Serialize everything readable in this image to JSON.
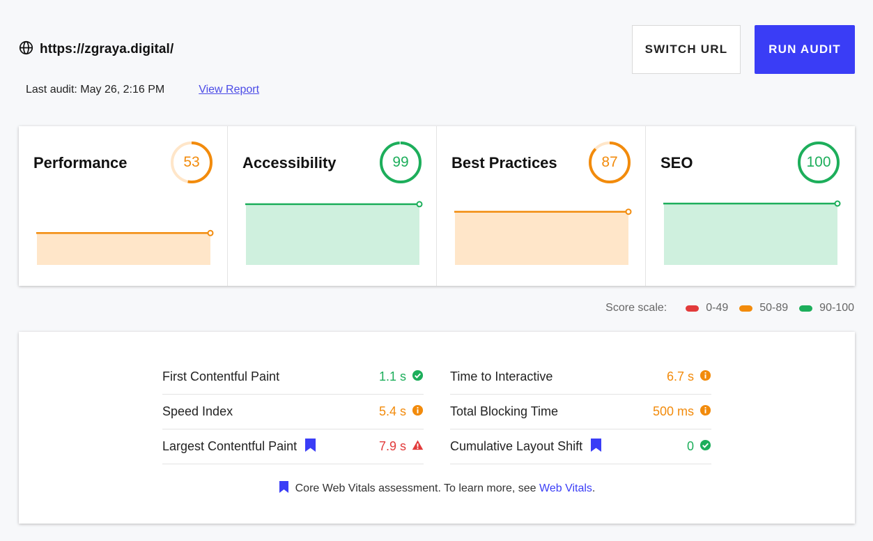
{
  "header": {
    "url": "https://zgraya.digital/",
    "last_audit": "Last audit: May 26, 2:16 PM",
    "view_report": "View Report",
    "switch_url": "SWITCH URL",
    "run_audit": "RUN AUDIT"
  },
  "colors": {
    "accent": "#3a3df6",
    "red": "#e23b3b",
    "orange": "#f28b0c",
    "green": "#1dae5b",
    "orange_fill": "#ffe6c9",
    "green_fill": "#cff0de"
  },
  "categories": [
    {
      "title": "Performance",
      "score": "53",
      "color": "orange"
    },
    {
      "title": "Accessibility",
      "score": "99",
      "color": "green"
    },
    {
      "title": "Best Practices",
      "score": "87",
      "color": "orange"
    },
    {
      "title": "SEO",
      "score": "100",
      "color": "green"
    }
  ],
  "scale": {
    "label": "Score scale:",
    "items": [
      {
        "range": "0-49",
        "color": "red"
      },
      {
        "range": "50-89",
        "color": "orange"
      },
      {
        "range": "90-100",
        "color": "green"
      }
    ]
  },
  "metrics": {
    "left": [
      {
        "name": "First Contentful Paint",
        "value": "1.1 s",
        "status": "pass",
        "bookmark": false
      },
      {
        "name": "Speed Index",
        "value": "5.4 s",
        "status": "average",
        "bookmark": false
      },
      {
        "name": "Largest Contentful Paint",
        "value": "7.9 s",
        "status": "fail",
        "bookmark": true
      }
    ],
    "right": [
      {
        "name": "Time to Interactive",
        "value": "6.7 s",
        "status": "average",
        "bookmark": false
      },
      {
        "name": "Total Blocking Time",
        "value": "500 ms",
        "status": "average",
        "bookmark": false
      },
      {
        "name": "Cumulative Layout Shift",
        "value": "0",
        "status": "pass",
        "bookmark": true
      }
    ]
  },
  "footnote": {
    "text": "Core Web Vitals assessment. To learn more, see",
    "link": "Web Vitals",
    "period": "."
  }
}
